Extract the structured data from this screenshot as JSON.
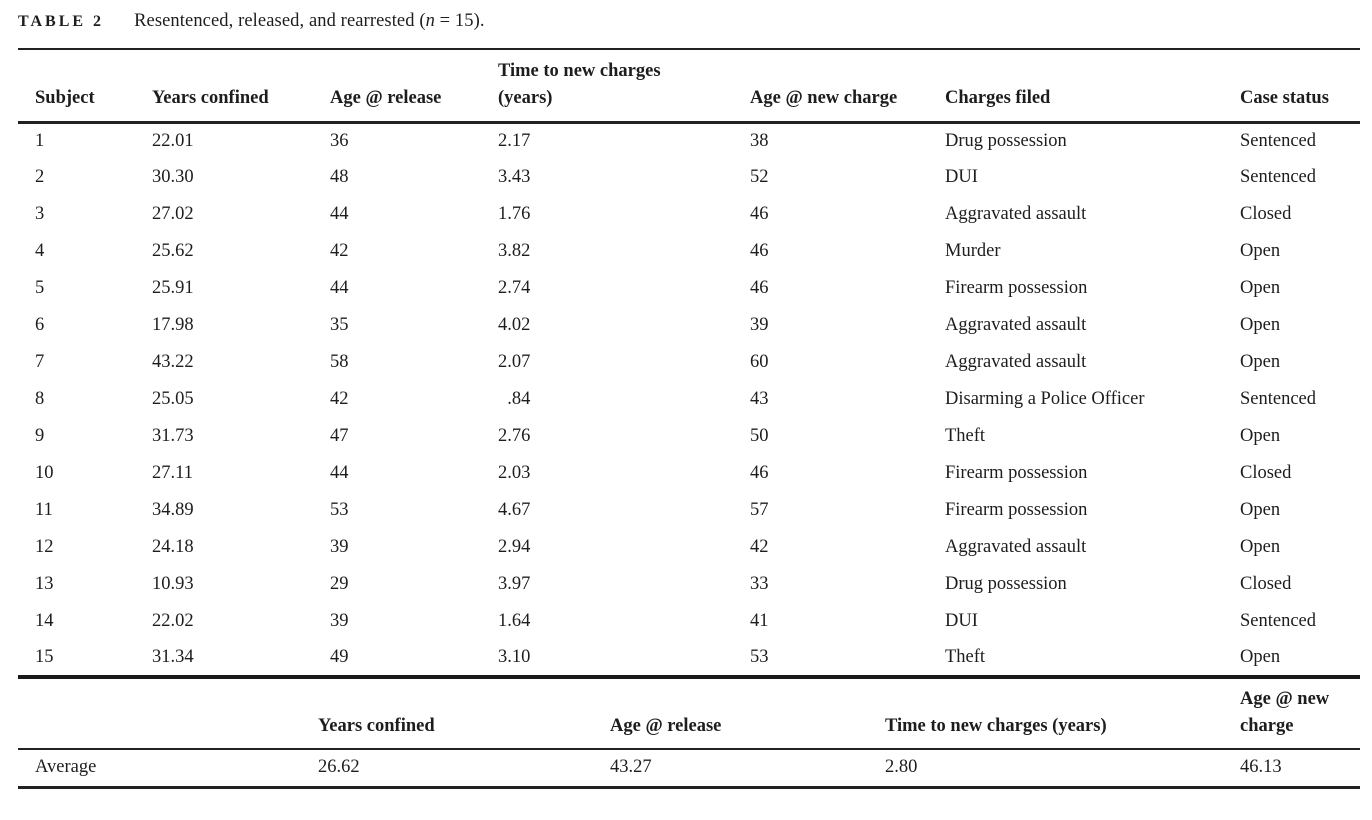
{
  "caption": {
    "label": "TABLE 2",
    "text_before": "Resentenced, released, and rearrested (",
    "n_symbol": "n",
    "text_after": " = 15)."
  },
  "table": {
    "columns": [
      "Subject",
      "Years confined",
      "Age @ release",
      "Time to new charges (years)",
      "Age @ new charge",
      "Charges filed",
      "Case status"
    ],
    "rows": [
      [
        "1",
        "22.01",
        "36",
        "2.17",
        "38",
        "Drug possession",
        "Sentenced"
      ],
      [
        "2",
        "30.30",
        "48",
        "3.43",
        "52",
        "DUI",
        "Sentenced"
      ],
      [
        "3",
        "27.02",
        "44",
        "1.76",
        "46",
        "Aggravated assault",
        "Closed"
      ],
      [
        "4",
        "25.62",
        "42",
        "3.82",
        "46",
        "Murder",
        "Open"
      ],
      [
        "5",
        "25.91",
        "44",
        "2.74",
        "46",
        "Firearm possession",
        "Open"
      ],
      [
        "6",
        "17.98",
        "35",
        "4.02",
        "39",
        "Aggravated assault",
        "Open"
      ],
      [
        "7",
        "43.22",
        "58",
        "2.07",
        "60",
        "Aggravated assault",
        "Open"
      ],
      [
        "8",
        "25.05",
        "42",
        "  .84",
        "43",
        "Disarming a Police Officer",
        "Sentenced"
      ],
      [
        "9",
        "31.73",
        "47",
        "2.76",
        "50",
        "Theft",
        "Open"
      ],
      [
        "10",
        "27.11",
        "44",
        "2.03",
        "46",
        "Firearm possession",
        "Closed"
      ],
      [
        "11",
        "34.89",
        "53",
        "4.67",
        "57",
        "Firearm possession",
        "Open"
      ],
      [
        "12",
        "24.18",
        "39",
        "2.94",
        "42",
        "Aggravated assault",
        "Open"
      ],
      [
        "13",
        "10.93",
        "29",
        "3.97",
        "33",
        "Drug possession",
        "Closed"
      ],
      [
        "14",
        "22.02",
        "39",
        "1.64",
        "41",
        "DUI",
        "Sentenced"
      ],
      [
        "15",
        "31.34",
        "49",
        "3.10",
        "53",
        "Theft",
        "Open"
      ]
    ]
  },
  "summary": {
    "columns": [
      "",
      "Years confined",
      "Age @ release",
      "Time to new charges (years)",
      "Age @ new charge"
    ],
    "row_label": "Average",
    "values": [
      "26.62",
      "43.27",
      "2.80",
      "46.13"
    ]
  }
}
